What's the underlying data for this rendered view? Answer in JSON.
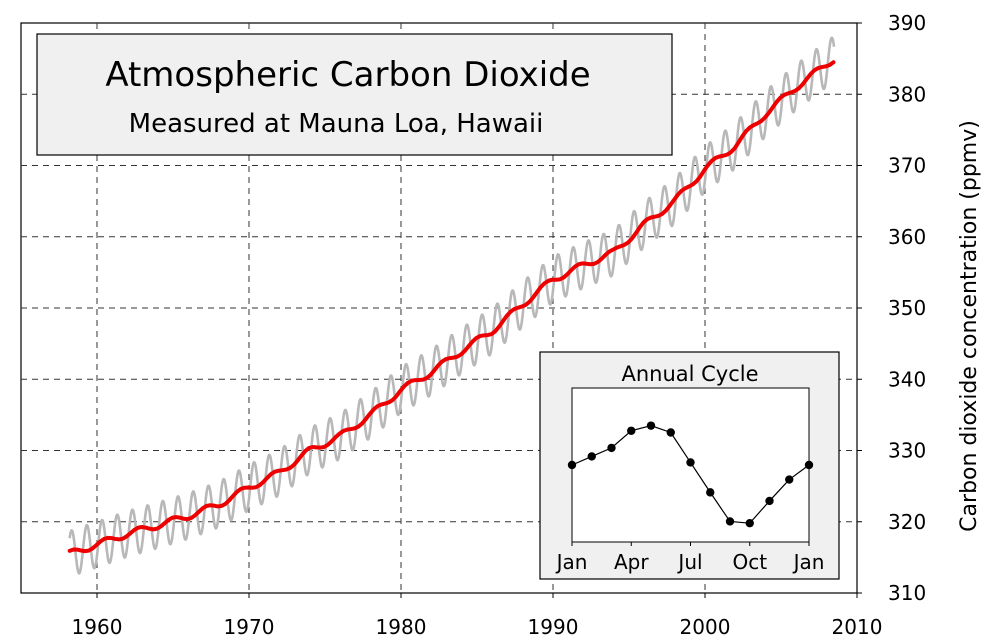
{
  "chart_data": [
    {
      "type": "line",
      "title": "Atmospheric Carbon Dioxide",
      "subtitle": "Measured at Mauna Loa, Hawaii",
      "xlabel": "",
      "ylabel": "Carbon dioxide concentration (ppmv)",
      "xlim": [
        1955,
        2010
      ],
      "ylim": [
        310,
        390
      ],
      "x_ticks": [
        1960,
        1970,
        1980,
        1990,
        2000,
        2010
      ],
      "y_ticks": [
        310,
        320,
        330,
        340,
        350,
        360,
        370,
        380,
        390
      ],
      "grid": true,
      "colors": {
        "trend": "#ee0000",
        "monthly": "#b8b8b8",
        "background": "#ffffff"
      },
      "series": [
        {
          "style": "seasonal-monthly",
          "x": [
            1958.2,
            1960,
            1962,
            1964,
            1966,
            1968,
            1970,
            1972,
            1974,
            1976,
            1978,
            1980,
            1982,
            1984,
            1986,
            1988,
            1990,
            1992,
            1994,
            1996,
            1998,
            2000,
            2002,
            2004,
            2006,
            2008.5
          ],
          "y": [
            315.5,
            316.8,
            318.3,
            319.5,
            320.8,
            322.4,
            324.8,
            326.9,
            330.0,
            332.0,
            335.0,
            338.5,
            341.0,
            344.0,
            346.8,
            350.5,
            354.0,
            356.0,
            357.8,
            361.7,
            365.0,
            369.5,
            372.8,
            377.3,
            381.0,
            385.0
          ],
          "seasonal_amplitude": 3.2
        },
        {
          "style": "trend",
          "x": [
            1958.2,
            1960,
            1962,
            1964,
            1966,
            1968,
            1970,
            1972,
            1974,
            1976,
            1978,
            1980,
            1982,
            1984,
            1986,
            1988,
            1990,
            1992,
            1994,
            1996,
            1998,
            2000,
            2002,
            2004,
            2006,
            2008.5
          ],
          "y": [
            315.5,
            316.8,
            318.3,
            319.5,
            320.8,
            322.4,
            324.8,
            326.9,
            330.0,
            332.0,
            335.0,
            338.5,
            341.0,
            344.0,
            346.8,
            350.5,
            354.0,
            356.0,
            357.8,
            361.7,
            365.0,
            369.5,
            372.8,
            377.3,
            381.0,
            385.0
          ]
        }
      ]
    },
    {
      "type": "line",
      "title": "Annual Cycle",
      "categories": [
        "Jan",
        "Apr",
        "Jul",
        "Oct",
        "Jan"
      ],
      "x": [
        0,
        1,
        2,
        3,
        4,
        5,
        6,
        7,
        8,
        9,
        10,
        11,
        12
      ],
      "values": [
        0.0,
        1.0,
        2.0,
        4.0,
        4.6,
        3.8,
        0.3,
        -3.2,
        -6.6,
        -6.8,
        -4.2,
        -1.7,
        0.0
      ],
      "ylim": [
        -9,
        9
      ],
      "marker": "dot"
    }
  ]
}
